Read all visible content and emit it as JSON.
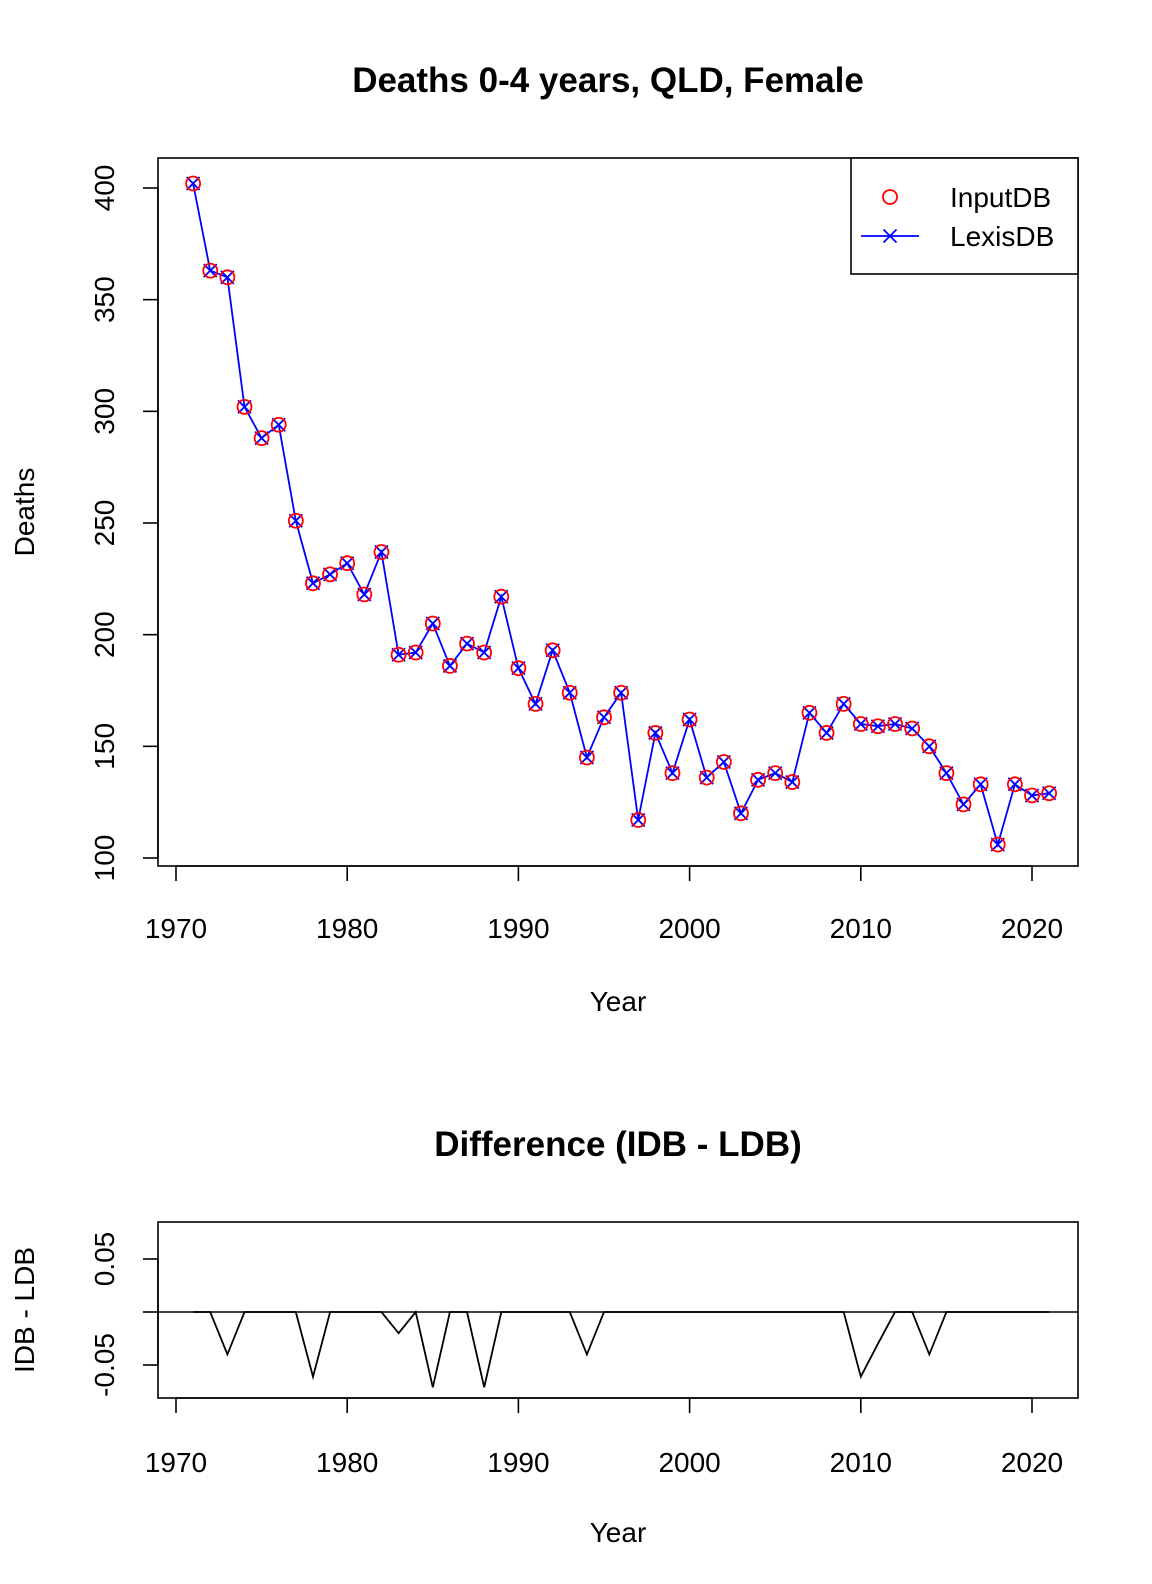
{
  "chart_data": [
    {
      "type": "line",
      "title": "Deaths 0-4 years, QLD, Female",
      "xlabel": "Year",
      "ylabel": "Deaths",
      "xlim": [
        1969.1,
        1972.9
      ],
      "ylim": [
        96,
        416
      ],
      "xticks": [
        1970,
        1980,
        1990,
        2000,
        2010,
        2020
      ],
      "yticks": [
        100,
        150,
        200,
        250,
        300,
        350,
        400
      ],
      "legend": {
        "placement": "top-right",
        "entries": [
          {
            "label": "InputDB",
            "marker": "circle",
            "color": "#ff0000",
            "line": false
          },
          {
            "label": "LexisDB",
            "marker": "x",
            "color": "#0000ff",
            "line": true
          }
        ]
      },
      "x": [
        1971,
        1972,
        1973,
        1974,
        1975,
        1976,
        1977,
        1978,
        1979,
        1980,
        1981,
        1982,
        1983,
        1984,
        1985,
        1986,
        1987,
        1988,
        1989,
        1990,
        1991,
        1992,
        1993,
        1994,
        1995,
        1996,
        1997,
        1998,
        1999,
        2000,
        2001,
        2002,
        2003,
        2004,
        2005,
        2006,
        2007,
        2008,
        2009,
        2010,
        2011,
        2012,
        2013,
        2014,
        2015,
        2016,
        2017,
        2018,
        2019,
        2020,
        2021
      ],
      "series": [
        {
          "name": "InputDB",
          "color": "#ff0000",
          "values": [
            402,
            363,
            360,
            302,
            288,
            294,
            251,
            223,
            227,
            232,
            218,
            237,
            191,
            192,
            205,
            186,
            196,
            192,
            217,
            185,
            169,
            193,
            174,
            145,
            163,
            174,
            117,
            156,
            138,
            162,
            136,
            143,
            120,
            135,
            138,
            134,
            165,
            156,
            169,
            160,
            159,
            160,
            158,
            150,
            138,
            124,
            133,
            106,
            133,
            128,
            129
          ]
        },
        {
          "name": "LexisDB",
          "color": "#0000ff",
          "values": [
            402,
            363,
            360,
            302,
            288,
            294,
            251,
            223,
            227,
            232,
            218,
            237,
            191,
            192,
            205,
            186,
            196,
            192,
            217,
            185,
            169,
            193,
            174,
            145,
            163,
            174,
            117,
            156,
            138,
            162,
            136,
            143,
            120,
            135,
            138,
            134,
            165,
            156,
            169,
            160,
            159,
            160,
            158,
            150,
            138,
            124,
            133,
            106,
            133,
            128,
            129
          ]
        }
      ]
    },
    {
      "type": "line",
      "title": "Difference (IDB - LDB)",
      "xlabel": "Year",
      "ylabel": "IDB - LDB",
      "ylim": [
        -0.084,
        0.084
      ],
      "xticks": [
        1970,
        1980,
        1990,
        2000,
        2010,
        2020
      ],
      "yticks": [
        -0.05,
        0.0,
        0.05
      ],
      "ytick_labels": [
        "-0.05",
        "",
        "0.05"
      ],
      "reference_line": 0,
      "x": [
        1971,
        1972,
        1973,
        1974,
        1975,
        1976,
        1977,
        1978,
        1979,
        1980,
        1981,
        1982,
        1983,
        1984,
        1985,
        1986,
        1987,
        1988,
        1989,
        1990,
        1991,
        1992,
        1993,
        1994,
        1995,
        1996,
        1997,
        1998,
        1999,
        2000,
        2001,
        2002,
        2003,
        2004,
        2005,
        2006,
        2007,
        2008,
        2009,
        2010,
        2011,
        2012,
        2013,
        2014,
        2015,
        2016,
        2017,
        2018,
        2019,
        2020,
        2021
      ],
      "series": [
        {
          "color": "#000000",
          "values": [
            0,
            0,
            -0.04,
            0,
            0,
            0,
            0,
            -0.061,
            0,
            0,
            0,
            0,
            -0.02,
            0,
            -0.071,
            0,
            0,
            -0.071,
            0,
            0,
            0,
            0,
            0,
            -0.04,
            0,
            0,
            0,
            0,
            0,
            0,
            0,
            0,
            0,
            0,
            0,
            0,
            0,
            0,
            0,
            -0.061,
            -0.03,
            0,
            0,
            -0.04,
            0,
            0,
            0,
            0,
            0,
            0,
            0
          ]
        }
      ]
    }
  ]
}
